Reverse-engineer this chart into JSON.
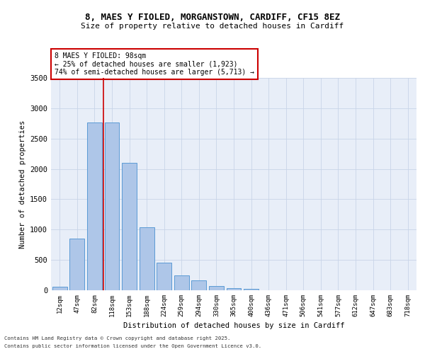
{
  "title_line1": "8, MAES Y FIOLED, MORGANSTOWN, CARDIFF, CF15 8EZ",
  "title_line2": "Size of property relative to detached houses in Cardiff",
  "xlabel": "Distribution of detached houses by size in Cardiff",
  "ylabel": "Number of detached properties",
  "categories": [
    "12sqm",
    "47sqm",
    "82sqm",
    "118sqm",
    "153sqm",
    "188sqm",
    "224sqm",
    "259sqm",
    "294sqm",
    "330sqm",
    "365sqm",
    "400sqm",
    "436sqm",
    "471sqm",
    "506sqm",
    "541sqm",
    "577sqm",
    "612sqm",
    "647sqm",
    "683sqm",
    "718sqm"
  ],
  "values": [
    55,
    850,
    2760,
    2760,
    2100,
    1040,
    455,
    245,
    160,
    65,
    40,
    20,
    5,
    5,
    3,
    0,
    0,
    0,
    0,
    0,
    0
  ],
  "bar_color": "#aec6e8",
  "bar_edge_color": "#5b9bd5",
  "grid_color": "#c8d4e8",
  "background_color": "#e8eef8",
  "annotation_box_text": "8 MAES Y FIOLED: 98sqm\n← 25% of detached houses are smaller (1,923)\n74% of semi-detached houses are larger (5,713) →",
  "annotation_box_color": "#ffffff",
  "annotation_box_edge_color": "#cc0000",
  "vline_color": "#cc0000",
  "vline_x": 2.5,
  "ylim": [
    0,
    3500
  ],
  "yticks": [
    0,
    500,
    1000,
    1500,
    2000,
    2500,
    3000,
    3500
  ],
  "footer_line1": "Contains HM Land Registry data © Crown copyright and database right 2025.",
  "footer_line2": "Contains public sector information licensed under the Open Government Licence v3.0."
}
